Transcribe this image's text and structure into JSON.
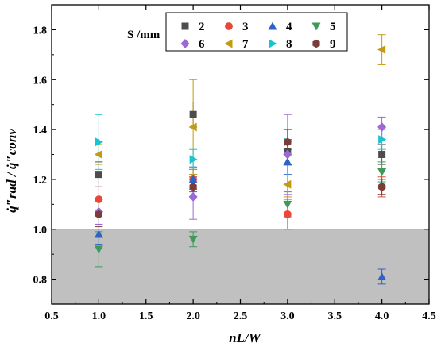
{
  "chart_data": {
    "type": "scatter",
    "xlabel": "nL/W",
    "ylabel": "q̇″rad / q̇″conv",
    "xlim": [
      0.5,
      4.5
    ],
    "ylim": [
      0.7,
      1.9
    ],
    "xticks": [
      "0.5",
      "1.0",
      "1.5",
      "2.0",
      "2.5",
      "3.0",
      "3.5",
      "4.0",
      "4.5"
    ],
    "yticks": [
      "0.8",
      "1.0",
      "1.2",
      "1.4",
      "1.6",
      "1.8"
    ],
    "reference_line": 1.0,
    "shaded_below": 1.0,
    "shade_color": "#c0c0c0",
    "reference_color": "#e8b04a",
    "legend_title": "S /mm",
    "legend_position": "top-center",
    "series": [
      {
        "name": "2",
        "marker": "square",
        "color": "#4d4d4d",
        "x": [
          1.0,
          2.0,
          3.0,
          4.0
        ],
        "y": [
          1.22,
          1.46,
          1.31,
          1.3
        ],
        "err": [
          0.05,
          0.05,
          0.05,
          0.04
        ]
      },
      {
        "name": "3",
        "marker": "circle",
        "color": "#e8473a",
        "x": [
          1.0,
          2.0,
          3.0,
          4.0
        ],
        "y": [
          1.12,
          1.2,
          1.06,
          1.17
        ],
        "err": [
          0.05,
          0.04,
          0.06,
          0.04
        ]
      },
      {
        "name": "4",
        "marker": "triangle-up",
        "color": "#2f62c9",
        "x": [
          1.0,
          2.0,
          3.0,
          4.0
        ],
        "y": [
          0.98,
          1.2,
          1.27,
          0.81
        ],
        "err": [
          0.04,
          0.05,
          0.05,
          0.03
        ]
      },
      {
        "name": "5",
        "marker": "triangle-down",
        "color": "#3f9a5a",
        "x": [
          1.0,
          2.0,
          3.0,
          4.0
        ],
        "y": [
          0.92,
          0.96,
          1.1,
          1.23
        ],
        "err": [
          0.07,
          0.03,
          0.05,
          0.04
        ]
      },
      {
        "name": "6",
        "marker": "diamond",
        "color": "#9b6ad6",
        "x": [
          1.0,
          2.0,
          3.0,
          4.0
        ],
        "y": [
          1.07,
          1.13,
          1.3,
          1.41
        ],
        "err": [
          0.05,
          0.09,
          0.16,
          0.04
        ]
      },
      {
        "name": "7",
        "marker": "triangle-left",
        "color": "#c29b12",
        "x": [
          1.0,
          2.0,
          3.0,
          4.0
        ],
        "y": [
          1.3,
          1.41,
          1.18,
          1.72
        ],
        "err": [
          0.04,
          0.19,
          0.05,
          0.06
        ]
      },
      {
        "name": "8",
        "marker": "triangle-right",
        "color": "#19c3cf",
        "x": [
          1.0,
          2.0,
          3.0,
          4.0
        ],
        "y": [
          1.35,
          1.28,
          1.35,
          1.36
        ],
        "err": [
          0.11,
          0.04,
          0.05,
          0.04
        ]
      },
      {
        "name": "9",
        "marker": "hexagon",
        "color": "#7a3e3a",
        "x": [
          1.0,
          2.0,
          3.0,
          4.0
        ],
        "y": [
          1.06,
          1.17,
          1.35,
          1.17
        ],
        "err": [
          0.05,
          0.04,
          0.05,
          0.03
        ]
      }
    ]
  }
}
